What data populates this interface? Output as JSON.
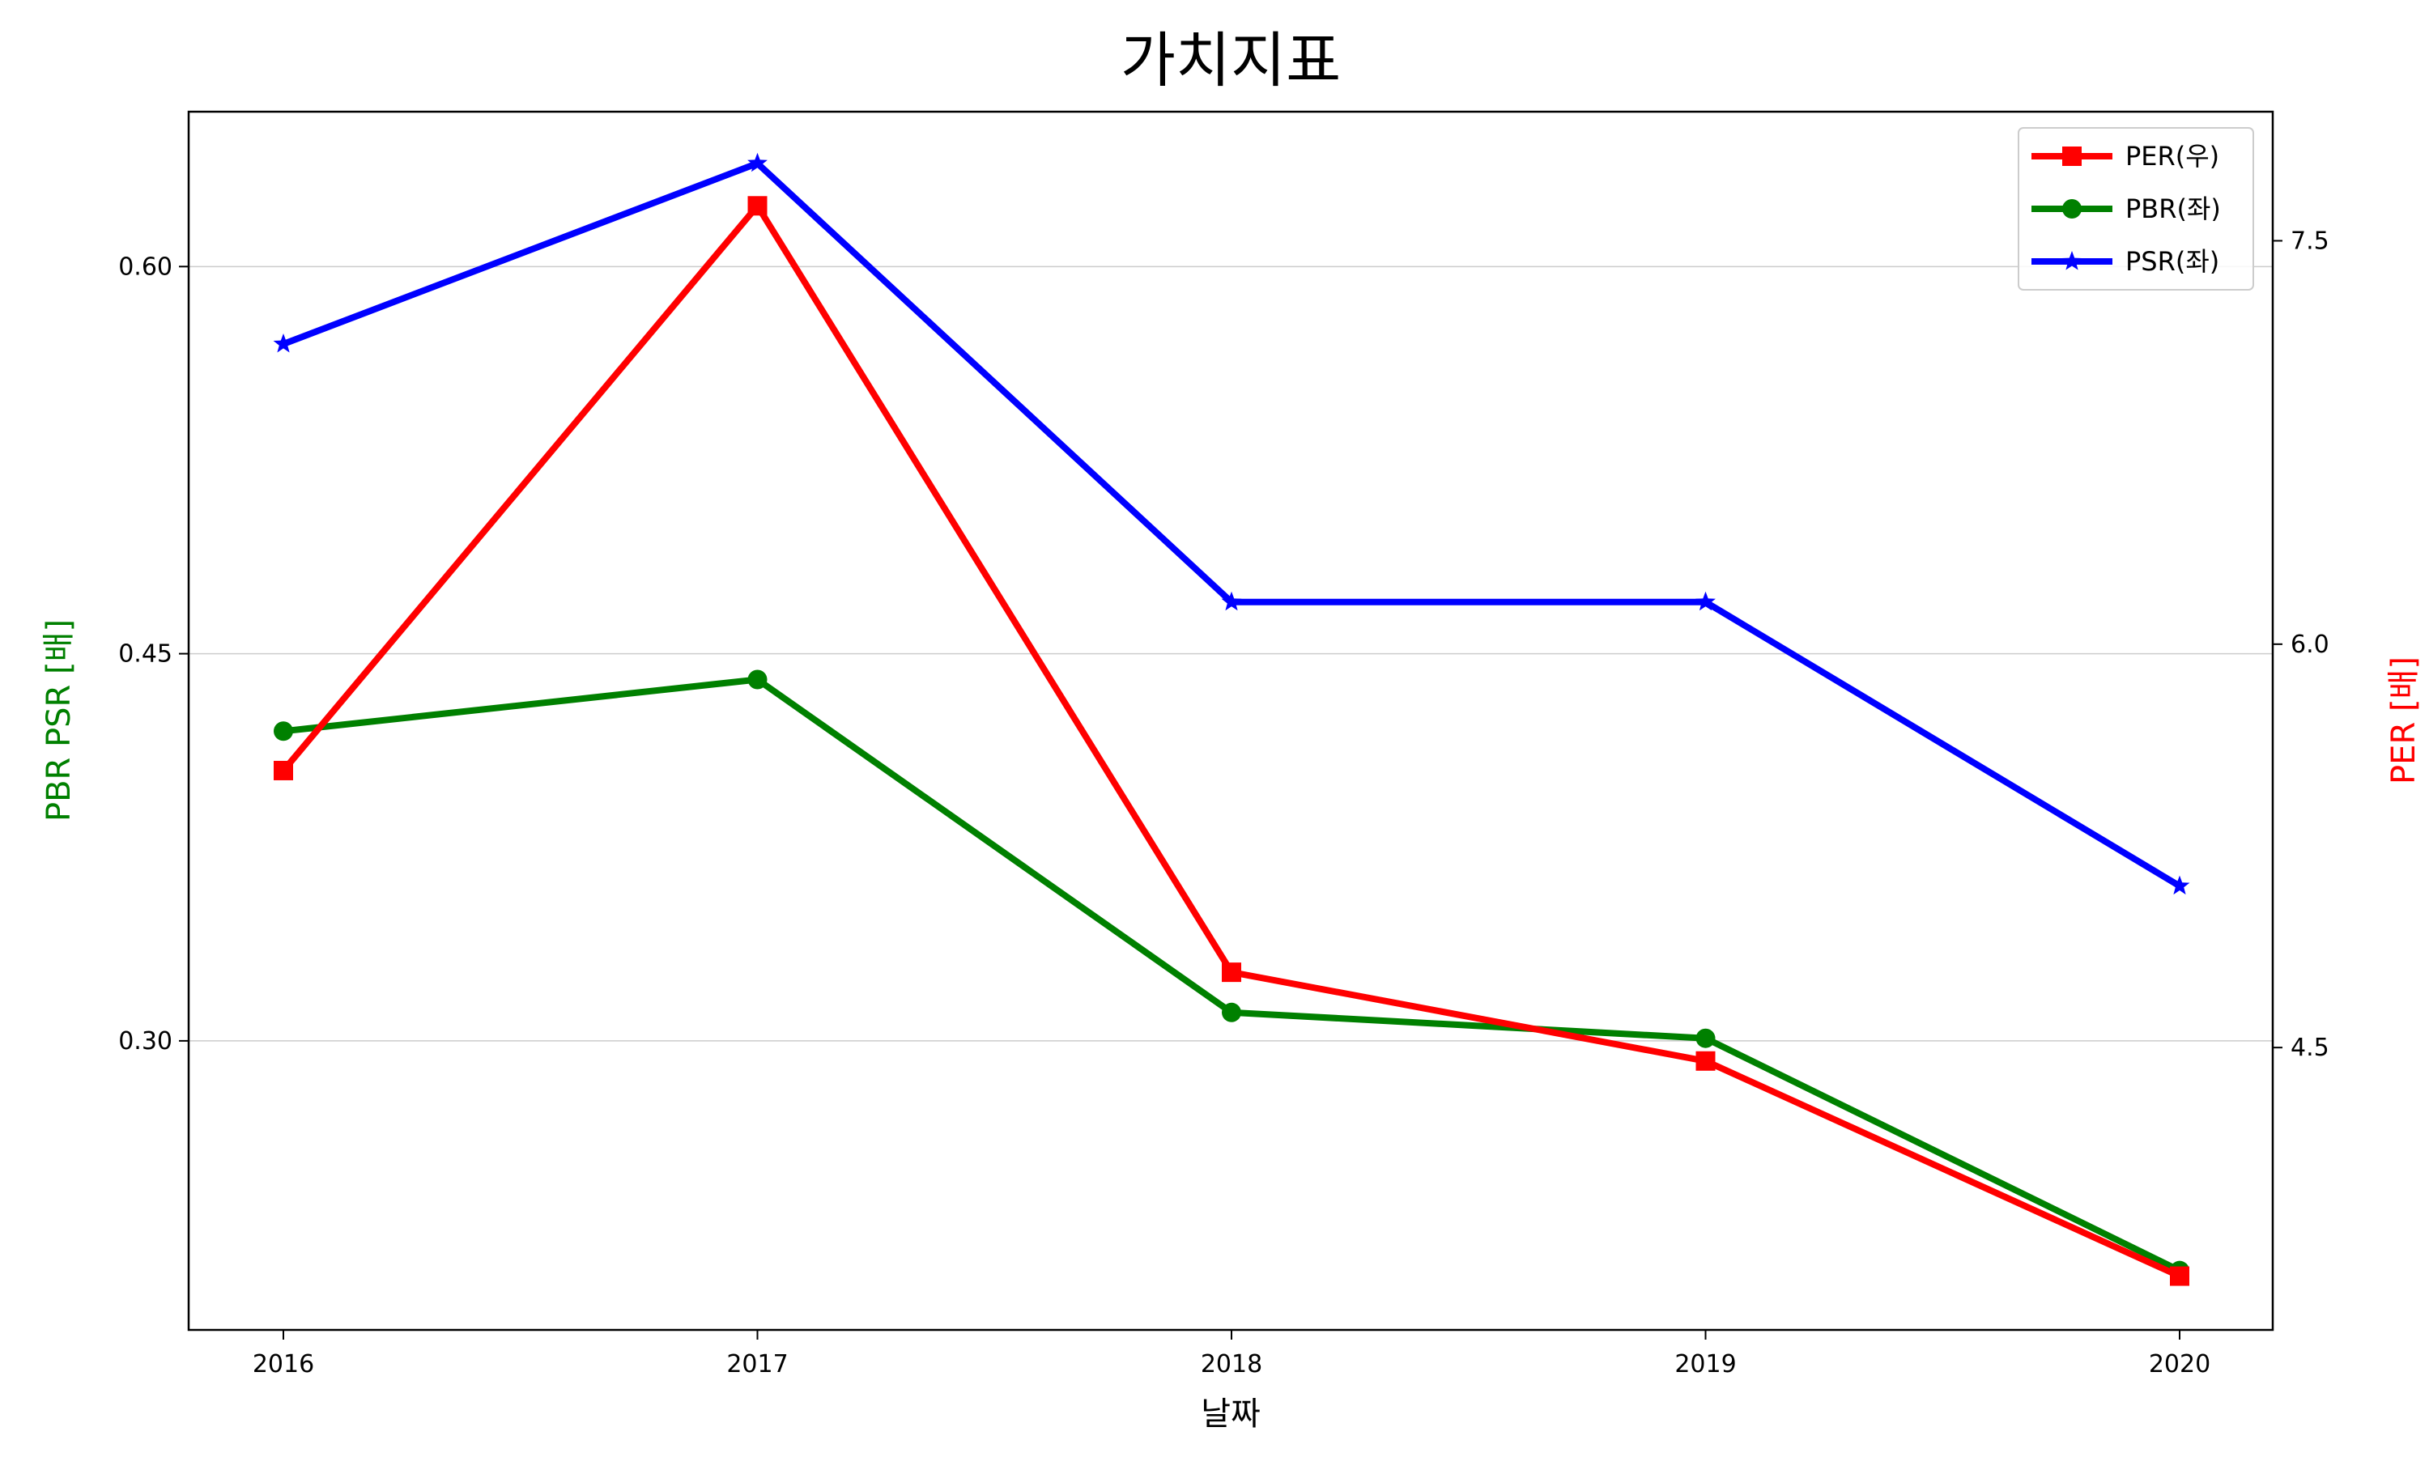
{
  "chart_data": {
    "type": "line",
    "title": "가치지표",
    "xlabel": "날짜",
    "ylabel_left": "PBR PSR [배]",
    "ylabel_right": "PER [배]",
    "x": [
      "2016",
      "2017",
      "2018",
      "2019",
      "2020"
    ],
    "ylim_left": [
      0.188,
      0.66
    ],
    "yticks_left": [
      "0.30",
      "0.45",
      "0.60"
    ],
    "ylim_right": [
      3.45,
      7.98
    ],
    "yticks_right": [
      "4.5",
      "6.0",
      "7.5"
    ],
    "grid": "horizontal",
    "legend_position": "top-right",
    "series": [
      {
        "name": "PER(우)",
        "axis": "right",
        "color": "#ff0000",
        "marker": "square",
        "values": [
          5.53,
          7.63,
          4.78,
          4.45,
          3.65
        ]
      },
      {
        "name": "PBR(좌)",
        "axis": "left",
        "color": "#008000",
        "marker": "circle",
        "values": [
          0.42,
          0.44,
          0.311,
          0.301,
          0.211
        ]
      },
      {
        "name": "PSR(좌)",
        "axis": "left",
        "color": "#0000ff",
        "marker": "star",
        "values": [
          0.57,
          0.64,
          0.47,
          0.47,
          0.36
        ]
      }
    ]
  }
}
